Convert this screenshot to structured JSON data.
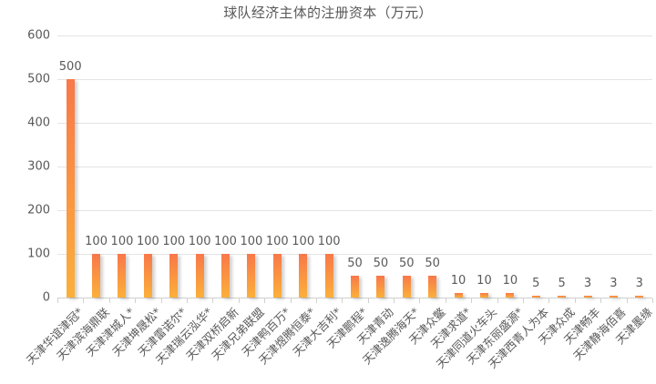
{
  "chart_data": {
    "type": "bar",
    "title": "球队经济主体的注册资本（万元）",
    "xlabel": "",
    "ylabel": "",
    "ylim": [
      0,
      600
    ],
    "yticks": [
      0,
      100,
      200,
      300,
      400,
      500,
      600
    ],
    "grid": true,
    "legend": null,
    "data_labels": true,
    "colors": {
      "bar_top": "#f8784a",
      "bar_bottom": "#fbb03b",
      "text": "#595959",
      "grid": "#e4e4e4"
    },
    "categories": [
      "天津华谊津冠*",
      "天津滨海鼎联",
      "天津津城人*",
      "天津坤晟松*",
      "天津雷诺尔*",
      "天津瑞云泓华*",
      "天津双桥启新",
      "天津兄弟联盟",
      "天津鸭百万*",
      "天津煜腾恒泰*",
      "天津大吉利*",
      "天津鹏程*",
      "天津青动",
      "天津逸腾海天*",
      "天津众鳖",
      "天津求道*",
      "天津同道火车头",
      "天津东丽盛源*",
      "天津西青人为本",
      "天津众成",
      "天津畅丰",
      "天津静海佰喜",
      "天津墨缘"
    ],
    "values": [
      500,
      100,
      100,
      100,
      100,
      100,
      100,
      100,
      100,
      100,
      100,
      50,
      50,
      50,
      50,
      10,
      10,
      10,
      5,
      5,
      3,
      3,
      3
    ]
  }
}
